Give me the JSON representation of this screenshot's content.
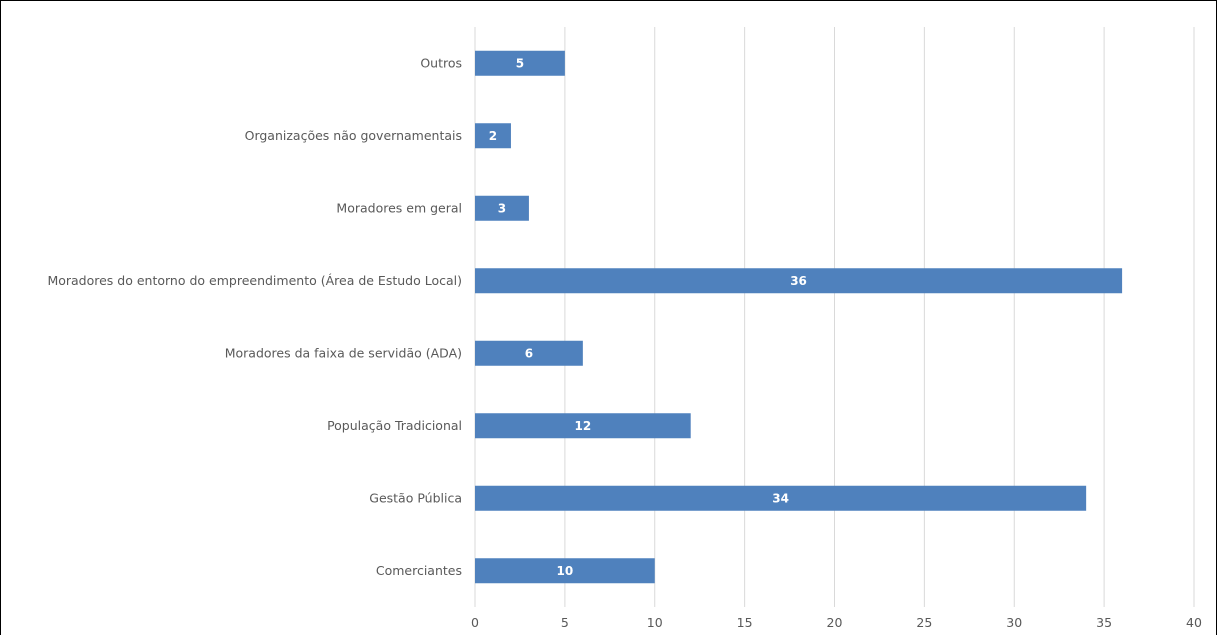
{
  "chart_data": {
    "type": "bar",
    "orientation": "horizontal",
    "categories": [
      "Outros",
      "Organizações não governamentais",
      "Moradores em geral",
      "Moradores do entorno do empreendimento (Área de Estudo Local)",
      "Moradores da faixa de servidão (ADA)",
      "População Tradicional",
      "Gestão Pública",
      "Comerciantes"
    ],
    "values": [
      5,
      2,
      3,
      36,
      6,
      12,
      34,
      10
    ],
    "data_labels": [
      "5",
      "2",
      "3",
      "36",
      "6",
      "12",
      "34",
      "10"
    ],
    "xticks": [
      "0",
      "5",
      "10",
      "15",
      "20",
      "25",
      "30",
      "35",
      "40"
    ],
    "xlim": [
      0,
      40
    ],
    "title": "",
    "xlabel": "",
    "ylabel": "",
    "grid": "vertical",
    "legend": "none",
    "bar_color": "#4f81bd",
    "grid_color": "#d9d9d9",
    "text_color": "#595959"
  }
}
